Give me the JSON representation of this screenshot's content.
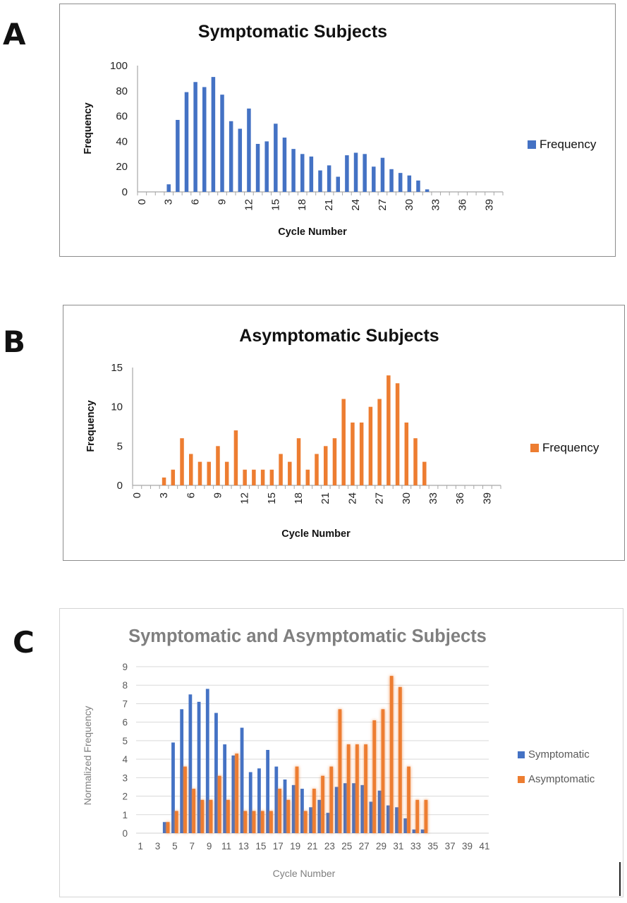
{
  "panels": {
    "a": {
      "letter": "A"
    },
    "b": {
      "letter": "B"
    },
    "c": {
      "letter": "C"
    }
  },
  "chart_data": [
    {
      "type": "bar",
      "title": "Symptomatic Subjects",
      "xlabel": "Cycle Number",
      "ylabel": "Frequency",
      "ylim": [
        0,
        100
      ],
      "yticks": [
        0,
        20,
        40,
        60,
        80,
        100
      ],
      "x": [
        0,
        1,
        2,
        3,
        4,
        5,
        6,
        7,
        8,
        9,
        10,
        11,
        12,
        13,
        14,
        15,
        16,
        17,
        18,
        19,
        20,
        21,
        22,
        23,
        24,
        25,
        26,
        27,
        28,
        29,
        30,
        31,
        32,
        33,
        34,
        35,
        36,
        37,
        38,
        39,
        40
      ],
      "xtick_labels": [
        "0",
        "3",
        "6",
        "9",
        "12",
        "15",
        "18",
        "21",
        "24",
        "27",
        "30",
        "33",
        "36",
        "39"
      ],
      "xtick_values": [
        0,
        3,
        6,
        9,
        12,
        15,
        18,
        21,
        24,
        27,
        30,
        33,
        36,
        39
      ],
      "series": [
        {
          "name": "Frequency",
          "color": "#4472C4",
          "values": [
            0,
            0,
            0,
            6,
            57,
            79,
            87,
            83,
            91,
            77,
            56,
            50,
            66,
            38,
            40,
            54,
            43,
            34,
            30,
            28,
            17,
            21,
            12,
            29,
            31,
            30,
            20,
            27,
            18,
            15,
            13,
            9,
            2,
            0,
            0,
            0,
            0,
            0,
            0,
            0,
            0
          ]
        }
      ],
      "legend": "right",
      "grid": false
    },
    {
      "type": "bar",
      "title": "Asymptomatic Subjects",
      "xlabel": "Cycle Number",
      "ylabel": "Frequency",
      "ylim": [
        0,
        15
      ],
      "yticks": [
        0,
        5,
        10,
        15
      ],
      "x": [
        0,
        1,
        2,
        3,
        4,
        5,
        6,
        7,
        8,
        9,
        10,
        11,
        12,
        13,
        14,
        15,
        16,
        17,
        18,
        19,
        20,
        21,
        22,
        23,
        24,
        25,
        26,
        27,
        28,
        29,
        30,
        31,
        32,
        33,
        34,
        35,
        36,
        37,
        38,
        39,
        40
      ],
      "xtick_labels": [
        "0",
        "3",
        "6",
        "9",
        "12",
        "15",
        "18",
        "21",
        "24",
        "27",
        "30",
        "33",
        "36",
        "39"
      ],
      "xtick_values": [
        0,
        3,
        6,
        9,
        12,
        15,
        18,
        21,
        24,
        27,
        30,
        33,
        36,
        39
      ],
      "series": [
        {
          "name": "Frequency",
          "color": "#ED7D31",
          "values": [
            0,
            0,
            0,
            1,
            2,
            6,
            4,
            3,
            3,
            5,
            3,
            7,
            2,
            2,
            2,
            2,
            4,
            3,
            6,
            2,
            4,
            5,
            6,
            11,
            8,
            8,
            10,
            11,
            14,
            13,
            8,
            6,
            3,
            0,
            0,
            0,
            0,
            0,
            0,
            0,
            0
          ]
        }
      ],
      "legend": "right",
      "grid": false
    },
    {
      "type": "bar",
      "title": "Symptomatic and Asymptomatic Subjects",
      "xlabel": "Cycle Number",
      "ylabel": "Normalized Frequency",
      "ylim": [
        0,
        9
      ],
      "yticks": [
        0,
        1,
        2,
        3,
        4,
        5,
        6,
        7,
        8,
        9
      ],
      "x": [
        1,
        2,
        3,
        4,
        5,
        6,
        7,
        8,
        9,
        10,
        11,
        12,
        13,
        14,
        15,
        16,
        17,
        18,
        19,
        20,
        21,
        22,
        23,
        24,
        25,
        26,
        27,
        28,
        29,
        30,
        31,
        32,
        33,
        34,
        35,
        36,
        37,
        38,
        39,
        40,
        41
      ],
      "xtick_labels": [
        "1",
        "3",
        "5",
        "7",
        "9",
        "11",
        "13",
        "15",
        "17",
        "19",
        "21",
        "23",
        "25",
        "27",
        "29",
        "31",
        "33",
        "35",
        "37",
        "39",
        "41"
      ],
      "xtick_values": [
        1,
        3,
        5,
        7,
        9,
        11,
        13,
        15,
        17,
        19,
        21,
        23,
        25,
        27,
        29,
        31,
        33,
        35,
        37,
        39,
        41
      ],
      "series": [
        {
          "name": "Symptomatic",
          "color": "#4472C4",
          "values": [
            0,
            0,
            0,
            0.6,
            4.9,
            6.7,
            7.5,
            7.1,
            7.8,
            6.5,
            4.8,
            4.2,
            5.7,
            3.3,
            3.5,
            4.5,
            3.6,
            2.9,
            2.6,
            2.4,
            1.4,
            1.8,
            1.1,
            2.5,
            2.7,
            2.7,
            2.6,
            1.7,
            2.3,
            1.5,
            1.4,
            0.8,
            0.2,
            0.2,
            0,
            0,
            0,
            0,
            0,
            0,
            0
          ]
        },
        {
          "name": "Asymptomatic",
          "color": "#ED7D31",
          "values": [
            0,
            0,
            0,
            0.6,
            1.2,
            3.6,
            2.4,
            1.8,
            1.8,
            3.1,
            1.8,
            4.3,
            1.2,
            1.2,
            1.2,
            1.2,
            2.4,
            1.8,
            3.6,
            1.2,
            2.4,
            3.1,
            3.6,
            6.7,
            4.8,
            4.8,
            4.8,
            6.1,
            6.7,
            8.5,
            7.9,
            3.6,
            1.8,
            1.8,
            0,
            0,
            0,
            0,
            0,
            0,
            0
          ]
        }
      ],
      "legend": "right",
      "grid": true
    }
  ]
}
